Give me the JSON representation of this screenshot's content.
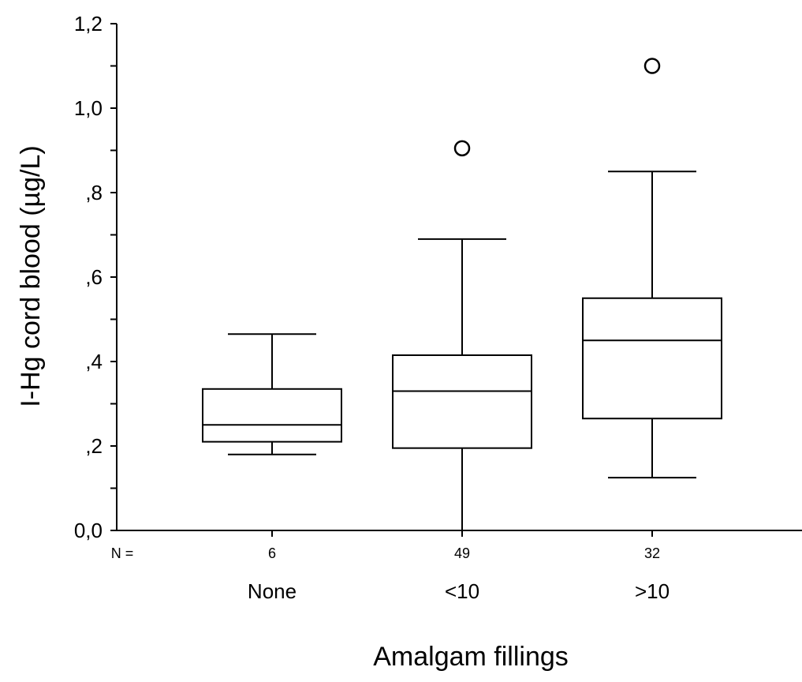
{
  "chart_data": {
    "type": "box",
    "title": "",
    "xlabel": "Amalgam fillings",
    "ylabel": "I-Hg cord blood (µg/L)",
    "ylim": [
      0,
      1.2
    ],
    "y_ticks": [
      {
        "value": 0.0,
        "label": "0,0"
      },
      {
        "value": 0.2,
        "label": ",2"
      },
      {
        "value": 0.4,
        "label": ",4"
      },
      {
        "value": 0.6,
        "label": ",6"
      },
      {
        "value": 0.8,
        "label": ",8"
      },
      {
        "value": 1.0,
        "label": "1,0"
      },
      {
        "value": 1.2,
        "label": "1,2"
      }
    ],
    "y_minor_step": 0.1,
    "n_label": "N =",
    "categories": [
      "None",
      "<10",
      ">10"
    ],
    "n_values": [
      "6",
      "49",
      "32"
    ],
    "boxes": [
      {
        "category": "None",
        "whisker_low": 0.18,
        "q1": 0.21,
        "median": 0.25,
        "q3": 0.335,
        "whisker_high": 0.465,
        "outliers": []
      },
      {
        "category": "<10",
        "whisker_low": 0.0,
        "q1": 0.195,
        "median": 0.33,
        "q3": 0.415,
        "whisker_high": 0.69,
        "outliers": [
          0.905
        ]
      },
      {
        "category": ">10",
        "whisker_low": 0.125,
        "q1": 0.265,
        "median": 0.45,
        "q3": 0.55,
        "whisker_high": 0.85,
        "outliers": [
          1.1
        ]
      }
    ],
    "grid": false,
    "colors": {
      "stroke": "#000000",
      "box_fill": "#ffffff"
    }
  }
}
